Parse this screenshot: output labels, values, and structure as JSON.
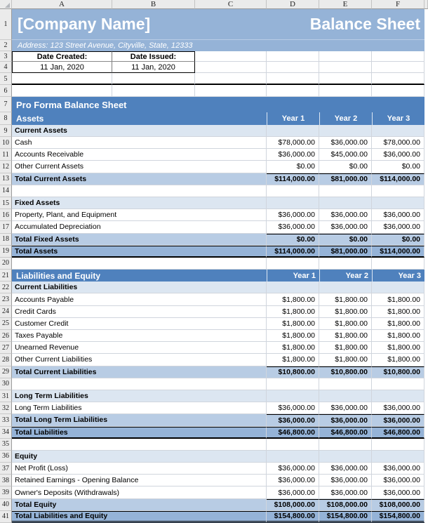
{
  "sheet": {
    "column_headers": [
      "A",
      "B",
      "C",
      "D",
      "E",
      "F"
    ],
    "company_name": "[Company Name]",
    "doc_title": "Balance Sheet",
    "address_line": "Address: 123 Street Avenue, Cityville, State, 12333",
    "date_created_label": "Date Created:",
    "date_created": "11 Jan, 2020",
    "date_issued_label": "Date Issued:",
    "date_issued": "11 Jan, 2020",
    "band_title": "Pro Forma Balance Sheet",
    "colors": {
      "header_blue": "#4f81bd",
      "steel_blue": "#95b3d7",
      "total_blue": "#b8cce4",
      "section_blue": "#dce6f1"
    },
    "rows": [
      {
        "n": "1",
        "type": "title"
      },
      {
        "n": "2",
        "type": "address"
      },
      {
        "n": "3",
        "type": "dates_labels"
      },
      {
        "n": "4",
        "type": "dates_values"
      },
      {
        "n": "5",
        "type": "blank_top",
        "thick_bottom": true
      },
      {
        "n": "6",
        "type": "blank_top"
      },
      {
        "n": "7",
        "type": "band_title"
      },
      {
        "n": "8",
        "type": "band_cols",
        "label": "Assets",
        "years": [
          "Year 1",
          "Year 2",
          "Year 3"
        ],
        "year_align": "center"
      },
      {
        "n": "9",
        "type": "subheader",
        "label": "Current Assets"
      },
      {
        "n": "10",
        "type": "item",
        "label": "Cash",
        "values": [
          "$78,000.00",
          "$36,000.00",
          "$78,000.00"
        ]
      },
      {
        "n": "11",
        "type": "item",
        "label": "Accounts Receivable",
        "values": [
          "$36,000.00",
          "$45,000.00",
          "$36,000.00"
        ]
      },
      {
        "n": "12",
        "type": "item",
        "label": "Other Current Assets",
        "values": [
          "$0.00",
          "$0.00",
          "$0.00"
        ]
      },
      {
        "n": "13",
        "type": "total1",
        "label": "Total Current Assets",
        "values": [
          "$114,000.00",
          "$81,000.00",
          "$114,000.00"
        ]
      },
      {
        "n": "14",
        "type": "blank"
      },
      {
        "n": "15",
        "type": "subheader",
        "label": "Fixed Assets"
      },
      {
        "n": "16",
        "type": "item",
        "label": "Property, Plant, and Equipment",
        "values": [
          "$36,000.00",
          "$36,000.00",
          "$36,000.00"
        ]
      },
      {
        "n": "17",
        "type": "item",
        "label": "Accumulated Depreciation",
        "values": [
          "$36,000.00",
          "$36,000.00",
          "$36,000.00"
        ]
      },
      {
        "n": "18",
        "type": "total1",
        "label": "Total Fixed Assets",
        "values": [
          "$0.00",
          "$0.00",
          "$0.00"
        ]
      },
      {
        "n": "19",
        "type": "total2",
        "label": "Total Assets",
        "values": [
          "$114,000.00",
          "$81,000.00",
          "$114,000.00"
        ]
      },
      {
        "n": "20",
        "type": "blank"
      },
      {
        "n": "21",
        "type": "band_cols",
        "label": "Liabilities and Equity",
        "years": [
          "Year 1",
          "Year 2",
          "Year 3"
        ],
        "year_align": "right"
      },
      {
        "n": "22",
        "type": "subheader",
        "label": "Current Liabilities"
      },
      {
        "n": "23",
        "type": "item",
        "label": "Accounts Payable",
        "values": [
          "$1,800.00",
          "$1,800.00",
          "$1,800.00"
        ]
      },
      {
        "n": "24",
        "type": "item",
        "label": "Credit Cards",
        "values": [
          "$1,800.00",
          "$1,800.00",
          "$1,800.00"
        ]
      },
      {
        "n": "25",
        "type": "item",
        "label": "Customer Credit",
        "values": [
          "$1,800.00",
          "$1,800.00",
          "$1,800.00"
        ]
      },
      {
        "n": "26",
        "type": "item",
        "label": "Taxes Payable",
        "values": [
          "$1,800.00",
          "$1,800.00",
          "$1,800.00"
        ]
      },
      {
        "n": "27",
        "type": "item",
        "label": "Unearned Revenue",
        "values": [
          "$1,800.00",
          "$1,800.00",
          "$1,800.00"
        ]
      },
      {
        "n": "28",
        "type": "item",
        "label": "Other Current Liabilities",
        "values": [
          "$1,800.00",
          "$1,800.00",
          "$1,800.00"
        ]
      },
      {
        "n": "29",
        "type": "total1",
        "label": "Total Current Liabilities",
        "values": [
          "$10,800.00",
          "$10,800.00",
          "$10,800.00"
        ]
      },
      {
        "n": "30",
        "type": "blank"
      },
      {
        "n": "31",
        "type": "subheader",
        "label": "Long Term Liabilities"
      },
      {
        "n": "32",
        "type": "item",
        "label": "Long Term Liabilities",
        "values": [
          "$36,000.00",
          "$36,000.00",
          "$36,000.00"
        ]
      },
      {
        "n": "33",
        "type": "total1",
        "label": "Total Long Term Liabilities",
        "values": [
          "$36,000.00",
          "$36,000.00",
          "$36,000.00"
        ]
      },
      {
        "n": "34",
        "type": "total2",
        "label": "Total Liabilities",
        "values": [
          "$46,800.00",
          "$46,800.00",
          "$46,800.00"
        ]
      },
      {
        "n": "35",
        "type": "blank"
      },
      {
        "n": "36",
        "type": "subheader",
        "label": "Equity"
      },
      {
        "n": "37",
        "type": "item",
        "label": "Net Profit (Loss)",
        "values": [
          "$36,000.00",
          "$36,000.00",
          "$36,000.00"
        ]
      },
      {
        "n": "38",
        "type": "item",
        "label": "Retained Earnings - Opening Balance",
        "values": [
          "$36,000.00",
          "$36,000.00",
          "$36,000.00"
        ]
      },
      {
        "n": "39",
        "type": "item",
        "label": "Owner's Deposits (Withdrawals)",
        "values": [
          "$36,000.00",
          "$36,000.00",
          "$36,000.00"
        ]
      },
      {
        "n": "40",
        "type": "total1",
        "label": "Total Equity",
        "values": [
          "$108,000.00",
          "$108,000.00",
          "$108,000.00"
        ]
      },
      {
        "n": "41",
        "type": "total2",
        "label": "Total Liabilities and Equity",
        "values": [
          "$154,800.00",
          "$154,800.00",
          "$154,800.00"
        ],
        "double_bottom": true
      }
    ]
  }
}
